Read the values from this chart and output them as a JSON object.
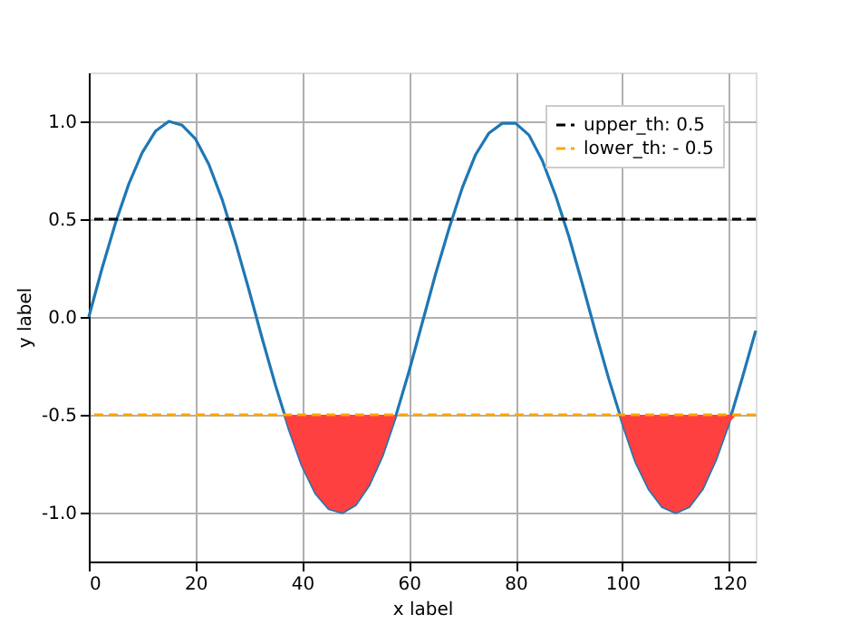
{
  "chart_data": {
    "type": "line",
    "xlabel": "x label",
    "ylabel": "y label",
    "xlim": [
      0,
      125
    ],
    "ylim": [
      -1.25,
      1.25
    ],
    "xticks": [
      0,
      20,
      40,
      60,
      80,
      100,
      120
    ],
    "yticks": [
      {
        "value": -1,
        "label": "-1.0"
      },
      {
        "value": -0.5,
        "label": "-0.5"
      },
      {
        "value": 0,
        "label": "0.0"
      },
      {
        "value": 0.5,
        "label": "0.5"
      },
      {
        "value": 1,
        "label": "1.0"
      }
    ],
    "grid": true,
    "legend": "top right",
    "line_style": "solid",
    "marker": "none",
    "x": [
      0,
      2.5,
      5,
      7.5,
      10,
      12.5,
      15,
      17.5,
      20,
      22.5,
      25,
      27.5,
      30,
      32.5,
      35,
      37.5,
      40,
      42.5,
      45,
      47.5,
      50,
      52.5,
      55,
      57.5,
      60,
      62.5,
      65,
      67.5,
      70,
      72.5,
      75,
      77.5,
      80,
      82.5,
      85,
      87.5,
      90,
      92.5,
      95,
      97.5,
      100,
      102.5,
      105,
      107.5,
      110,
      112.5,
      115,
      117.5,
      120,
      122.5,
      125
    ],
    "series": [
      {
        "color": "#1f77b4",
        "values": [
          0,
          0.25,
          0.48,
          0.68,
          0.84,
          0.95,
          1.0,
          0.98,
          0.91,
          0.78,
          0.6,
          0.38,
          0.14,
          -0.11,
          -0.35,
          -0.57,
          -0.76,
          -0.9,
          -0.98,
          -1.0,
          -0.96,
          -0.86,
          -0.71,
          -0.51,
          -0.28,
          -0.03,
          0.22,
          0.45,
          0.66,
          0.83,
          0.94,
          0.99,
          0.99,
          0.93,
          0.8,
          0.62,
          0.41,
          0.17,
          -0.08,
          -0.32,
          -0.54,
          -0.74,
          -0.88,
          -0.97,
          -1.0,
          -0.97,
          -0.88,
          -0.73,
          -0.54,
          -0.31,
          -0.07
        ]
      },
      {
        "type": "area",
        "color": "#ff4040",
        "x": [
          36.6,
          37.5,
          40,
          42.5,
          45,
          47.5,
          50,
          52.5,
          55,
          57.5
        ],
        "values": [
          -0.5,
          -0.57,
          -0.76,
          -0.9,
          -0.98,
          -1.0,
          -0.96,
          -0.86,
          -0.71,
          -0.51
        ]
      },
      {
        "type": "area",
        "color": "#ff4040",
        "x": [
          99.5,
          100,
          102.5,
          105,
          107.5,
          110,
          112.5,
          115,
          117.5,
          120,
          121.4
        ],
        "values": [
          -0.5,
          -0.54,
          -0.74,
          -0.88,
          -0.97,
          -1.0,
          -0.97,
          -0.88,
          -0.73,
          -0.54,
          -0.5
        ]
      }
    ],
    "ref_lines": [
      {
        "axis": "y",
        "value": 0.5,
        "label": "upper_th: 0.5",
        "color": "#000000",
        "line_style": "dashed"
      },
      {
        "axis": "y",
        "value": -0.5,
        "label": "lower_th: - 0.5",
        "color": "#ffa500",
        "line_style": "dashed"
      }
    ]
  }
}
